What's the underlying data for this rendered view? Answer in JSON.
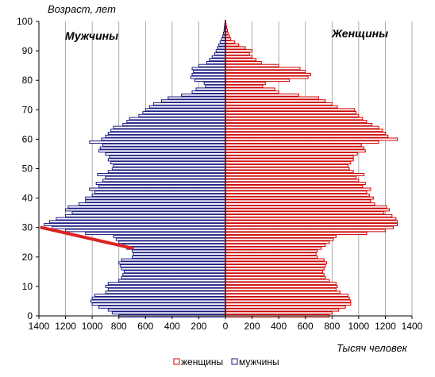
{
  "chart_data": {
    "type": "bar",
    "orientation": "horizontal-pyramid",
    "ylabel": "Возраст,  лет",
    "xlabel": "Тысяч человек",
    "left_label": "Мужчины",
    "right_label": "Женщины",
    "xlim": [
      -1400,
      1400
    ],
    "ylim": [
      0,
      100
    ],
    "x_tick_labels": [
      "1400",
      "1200",
      "1000",
      "800",
      "600",
      "400",
      "200",
      "0",
      "200",
      "400",
      "600",
      "800",
      "1000",
      "1200",
      "1400"
    ],
    "y_tick_labels": [
      "0",
      "10",
      "20",
      "30",
      "40",
      "50",
      "60",
      "70",
      "80",
      "90",
      "100"
    ],
    "legend": [
      "женщины",
      "мужчины"
    ],
    "legend_position": "bottom",
    "grid": "vertical",
    "colors": {
      "women": "#cc0000",
      "men": "#1a1a80",
      "center": "#8b0000",
      "arrow": "#dd2222"
    },
    "arrow": {
      "from": [
        -1380,
        30
      ],
      "to": [
        -700,
        23
      ]
    },
    "ages": [
      0,
      1,
      2,
      3,
      4,
      5,
      6,
      7,
      8,
      9,
      10,
      11,
      12,
      13,
      14,
      15,
      16,
      17,
      18,
      19,
      20,
      21,
      22,
      23,
      24,
      25,
      26,
      27,
      28,
      29,
      30,
      31,
      32,
      33,
      34,
      35,
      36,
      37,
      38,
      39,
      40,
      41,
      42,
      43,
      44,
      45,
      46,
      47,
      48,
      49,
      50,
      51,
      52,
      53,
      54,
      55,
      56,
      57,
      58,
      59,
      60,
      61,
      62,
      63,
      64,
      65,
      66,
      67,
      68,
      69,
      70,
      71,
      72,
      73,
      74,
      75,
      76,
      77,
      78,
      79,
      80,
      81,
      82,
      83,
      84,
      85,
      86,
      87,
      88,
      89,
      90,
      91,
      92,
      93,
      94,
      95,
      96,
      97,
      98,
      99,
      100
    ],
    "series": [
      {
        "name": "мужчины",
        "values": [
          800,
          850,
          880,
          950,
          1000,
          1010,
          1000,
          980,
          900,
          880,
          900,
          880,
          800,
          780,
          770,
          760,
          780,
          790,
          800,
          780,
          700,
          690,
          700,
          740,
          770,
          800,
          820,
          840,
          1050,
          1200,
          1300,
          1360,
          1320,
          1270,
          1200,
          1150,
          1200,
          1180,
          1100,
          1050,
          1050,
          1000,
          980,
          1020,
          950,
          970,
          920,
          900,
          960,
          880,
          850,
          840,
          860,
          880,
          870,
          900,
          950,
          940,
          920,
          1020,
          930,
          900,
          880,
          860,
          840,
          770,
          740,
          720,
          650,
          620,
          600,
          570,
          540,
          480,
          430,
          330,
          250,
          220,
          150,
          160,
          230,
          260,
          250,
          240,
          250,
          200,
          140,
          120,
          100,
          80,
          70,
          60,
          50,
          40,
          30,
          20,
          15,
          10,
          8,
          5,
          3,
          2,
          1
        ]
      },
      {
        "name": "женщины",
        "values": [
          780,
          800,
          850,
          900,
          940,
          940,
          930,
          920,
          860,
          830,
          840,
          830,
          780,
          750,
          740,
          730,
          740,
          750,
          760,
          740,
          690,
          680,
          690,
          720,
          750,
          780,
          810,
          830,
          1060,
          1200,
          1260,
          1290,
          1290,
          1280,
          1250,
          1190,
          1230,
          1210,
          1120,
          1090,
          1110,
          1080,
          1060,
          1090,
          1030,
          1050,
          1000,
          980,
          1040,
          960,
          930,
          920,
          940,
          960,
          960,
          990,
          1050,
          1040,
          1020,
          1150,
          1290,
          1220,
          1200,
          1180,
          1150,
          1100,
          1060,
          1030,
          1000,
          980,
          970,
          840,
          800,
          750,
          700,
          550,
          400,
          370,
          280,
          300,
          480,
          620,
          640,
          600,
          560,
          400,
          270,
          230,
          200,
          180,
          200,
          150,
          100,
          70,
          40,
          30,
          20,
          15,
          10,
          5,
          2
        ]
      }
    ]
  }
}
